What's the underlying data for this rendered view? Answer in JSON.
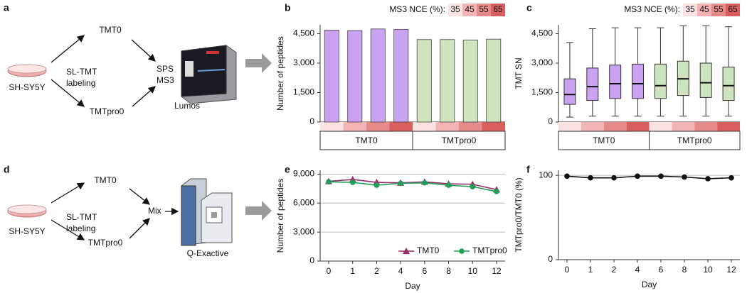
{
  "diagrams": [
    {
      "label": "a",
      "cell_line": "SH-SY5Y",
      "tag1": "TMT0",
      "method": [
        "SL-TMT",
        "labeling"
      ],
      "tag2": "TMTpro0",
      "acquisition": [
        "SPS",
        "MS3"
      ],
      "instrument": "Lumos"
    },
    {
      "label": "d",
      "cell_line": "SH-SY5Y",
      "tag1": "TMT0",
      "method": [
        "SL-TMT",
        "labeling"
      ],
      "tag2": "TMTpro0",
      "mix": "Mix",
      "instrument": "Q-Exactive"
    }
  ],
  "chart_data": [
    {
      "type": "bar",
      "panel_label": "b",
      "ylabel": "Number of peptides",
      "legend_title": "MS3 NCE (%):",
      "categories": [
        35,
        45,
        55,
        65
      ],
      "category_colors": [
        "#fbe3e3",
        "#f2b4b4",
        "#e68a8a",
        "#d95e5e"
      ],
      "series": [
        {
          "name": "TMT0",
          "color": "#c9a3f1",
          "values": [
            4680,
            4660,
            4740,
            4720
          ]
        },
        {
          "name": "TMTpro0",
          "color": "#cde4bf",
          "values": [
            4200,
            4200,
            4180,
            4220
          ]
        }
      ],
      "ylim": [
        0,
        4950
      ],
      "yticks": [
        0,
        {
          "value": 1500,
          "label": "1,500"
        },
        {
          "value": 3000,
          "label": "3,000"
        },
        {
          "value": 4500,
          "label": "4,500"
        }
      ],
      "grid": false
    },
    {
      "type": "box",
      "panel_label": "c",
      "ylabel": "TMT SN",
      "legend_title": "MS3 NCE (%):",
      "categories": [
        35,
        45,
        55,
        65
      ],
      "category_colors": [
        "#fbe3e3",
        "#f2b4b4",
        "#e68a8a",
        "#d95e5e"
      ],
      "series": [
        {
          "name": "TMT0",
          "color": "#c9a3f1",
          "whisker_low": [
            250,
            300,
            300,
            300
          ],
          "q1": [
            900,
            1100,
            1200,
            1200
          ],
          "median": [
            1400,
            1800,
            1950,
            1950
          ],
          "q3": [
            2200,
            2750,
            2900,
            2950
          ],
          "whisker_high": [
            4050,
            4750,
            4800,
            4800
          ]
        },
        {
          "name": "TMTpro0",
          "color": "#cde4bf",
          "whisker_low": [
            300,
            300,
            300,
            300
          ],
          "q1": [
            1200,
            1350,
            1250,
            1100
          ],
          "median": [
            1850,
            2200,
            2000,
            1850
          ],
          "q3": [
            2950,
            3100,
            3000,
            2800
          ],
          "whisker_high": [
            4800,
            4900,
            4900,
            4850
          ]
        }
      ],
      "ylim": [
        0,
        4950
      ],
      "yticks": [
        0,
        {
          "value": 1500,
          "label": "1,500"
        },
        {
          "value": 3000,
          "label": "3,000"
        },
        {
          "value": 4500,
          "label": "4,500"
        }
      ],
      "grid": false
    },
    {
      "type": "line",
      "panel_label": "e",
      "ylabel": "Number of peptides",
      "xlabel": "Day",
      "categories": [
        "0",
        "1",
        "2",
        "4",
        "6",
        "8",
        "10",
        "12"
      ],
      "series": [
        {
          "name": "TMT0",
          "color": "#9b2c6a",
          "marker": "triangle",
          "values": [
            8250,
            8450,
            8150,
            8100,
            8200,
            8000,
            7950,
            7400
          ]
        },
        {
          "name": "TMTpro0",
          "color": "#1f9e57",
          "marker": "circle",
          "values": [
            8200,
            8150,
            7850,
            8050,
            8100,
            7850,
            7700,
            7200
          ]
        }
      ],
      "ylim": [
        0,
        9400
      ],
      "yticks": [
        0,
        {
          "value": 3000,
          "label": "3,000"
        },
        {
          "value": 6000,
          "label": "6,000"
        },
        {
          "value": 9000,
          "label": "9,000"
        }
      ],
      "grid": true,
      "legend": "lower right"
    },
    {
      "type": "line",
      "panel_label": "f",
      "ylabel": "TMTpro0/TMT0 (%)",
      "xlabel": "Day",
      "categories": [
        "0",
        "1",
        "2",
        "4",
        "6",
        "8",
        "10",
        "12"
      ],
      "series": [
        {
          "color": "#111111",
          "marker": "circle",
          "values": [
            99,
            97,
            97,
            99,
            99,
            98,
            96,
            97
          ]
        }
      ],
      "ylim": [
        0,
        106
      ],
      "yticks": [
        0,
        100
      ],
      "grid": true
    }
  ]
}
